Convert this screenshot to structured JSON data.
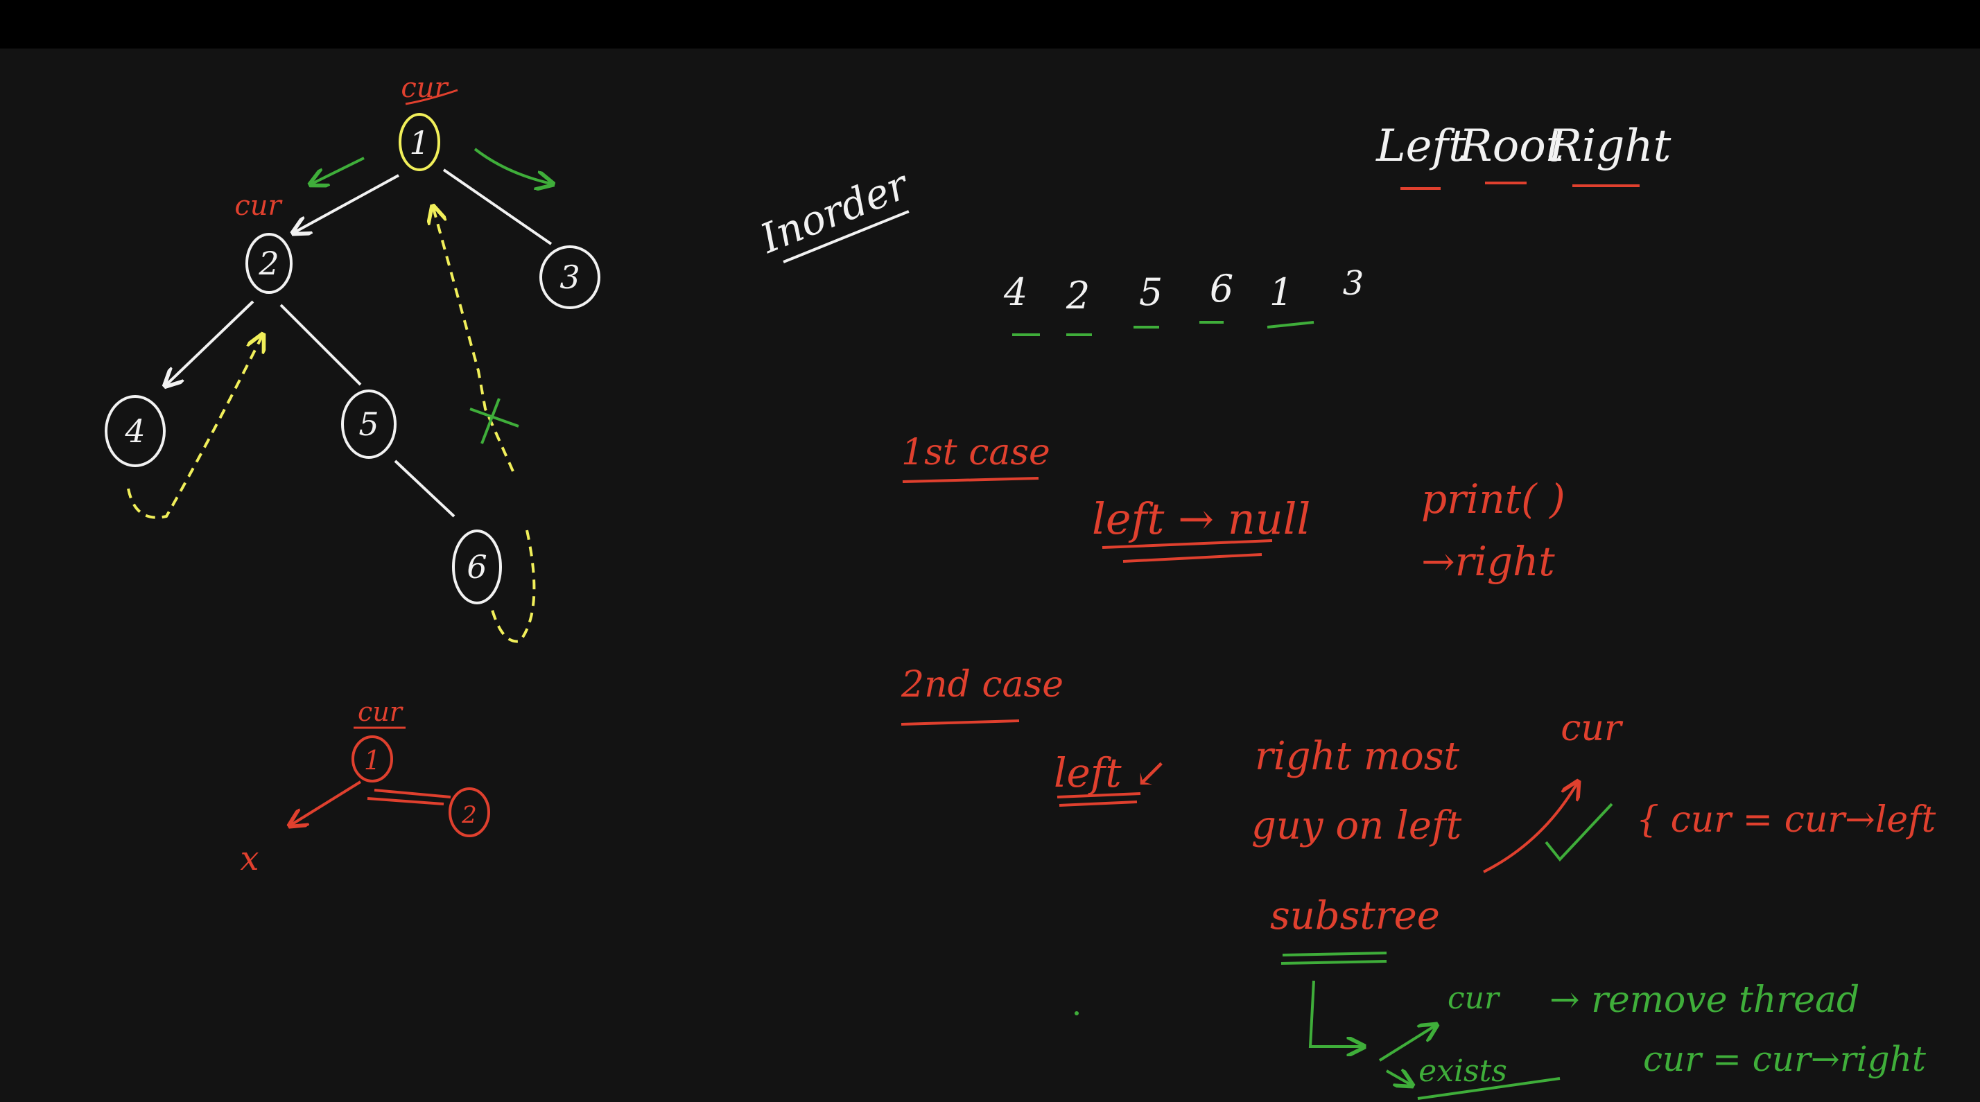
{
  "colors": {
    "background": "#131313",
    "topbar": "#000000",
    "white": "#f2f2f2",
    "yellow": "#f1ef5a",
    "green": "#3fae3a",
    "red": "#e0402e"
  },
  "tree": {
    "cur_label_root": "cur",
    "cur_label_node2": "cur",
    "nodes": [
      "1",
      "2",
      "3",
      "4",
      "5",
      "6"
    ]
  },
  "small_tree": {
    "cur_label": "cur",
    "node_a": "1",
    "node_b": "2",
    "cross": "x"
  },
  "heading": {
    "inorder": "Inorder",
    "order_words": [
      "Left",
      "Root",
      "Right"
    ]
  },
  "sequence": [
    "4",
    "2",
    "5",
    "6",
    "1",
    "3"
  ],
  "case1": {
    "title": "1st case",
    "condition": "left → null",
    "action1": "print( )",
    "action2": "→right"
  },
  "case2": {
    "title": "2nd case",
    "left": "left ↙",
    "rightmost1": "right most",
    "rightmost2": "guy on left",
    "rightmost3": "substree",
    "cur": "cur",
    "assign_left": "{ cur = cur→left",
    "branch_cur": "cur",
    "branch_exists": "exists",
    "remove_thread": "→ remove thread",
    "assign_right": "cur = cur→right"
  }
}
